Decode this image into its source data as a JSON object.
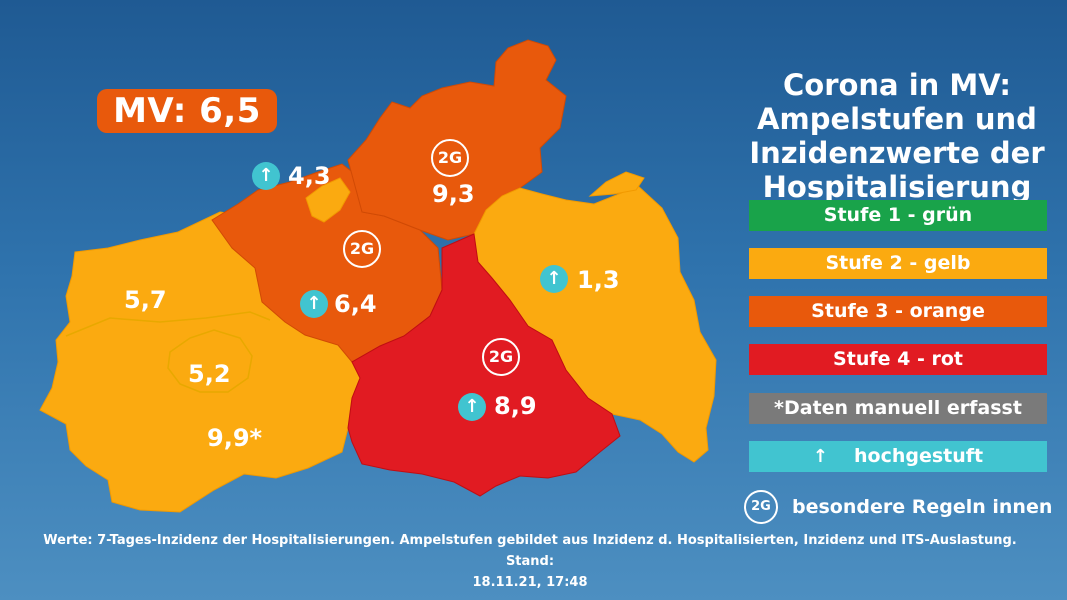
{
  "map": {
    "total_badge": "MV: 6,5",
    "title_lines": [
      "Corona in MV:",
      "Ampelstufen und",
      "Inzidenzwerte der",
      "Hospitalisierung"
    ],
    "districts": [
      {
        "id": "vorpommern-ruegen",
        "value": "9,3",
        "level": 3,
        "color": "#e8590c",
        "up": false,
        "two_g": true
      },
      {
        "id": "rostock",
        "value": "6,4",
        "level": 3,
        "color": "#e8590c",
        "up": true,
        "two_g": true
      },
      {
        "id": "rostock-stadt",
        "value": "4,3",
        "level": 2,
        "color": "#fbaa10",
        "up": true,
        "two_g": false
      },
      {
        "id": "vorpommern-greifswald",
        "value": "1,3",
        "level": 2,
        "color": "#fbaa10",
        "up": true,
        "two_g": false
      },
      {
        "id": "nordwestmecklenburg",
        "value": "5,7",
        "level": 2,
        "color": "#fbaa10",
        "up": false,
        "two_g": false
      },
      {
        "id": "schwerin",
        "value": "5,2",
        "level": 2,
        "color": "#fbaa10",
        "up": false,
        "two_g": false
      },
      {
        "id": "ludwigslust-parchim",
        "value": "9,9*",
        "level": 2,
        "color": "#fbaa10",
        "up": false,
        "two_g": false
      },
      {
        "id": "mecklenburgische-seenplatte",
        "value": "8,9",
        "level": 4,
        "color": "#e11b22",
        "up": true,
        "two_g": true
      }
    ],
    "two_g_label": "2G",
    "up_symbol": "up-arrow-icon"
  },
  "legend": {
    "items": [
      {
        "label": "Stufe 1 - grün",
        "color": "#19a34a"
      },
      {
        "label": "Stufe 2 - gelb",
        "color": "#fbaa10"
      },
      {
        "label": "Stufe 3 - orange",
        "color": "#e8590c"
      },
      {
        "label": "Stufe 4 - rot",
        "color": "#e11b22"
      },
      {
        "label": "*Daten manuell erfasst",
        "color": "#7a7a7a"
      },
      {
        "label": "hochgestuft",
        "color": "#41c4d0"
      }
    ],
    "rule_badge": "2G",
    "rule_label": "besondere Regeln innen"
  },
  "footnote": {
    "line1": "Werte: 7-Tages-Inzidenz der Hospitalisierungen. Ampelstufen gebildet aus Inzidenz d. Hospitalisierten, Inzidenz und ITS-Auslastung. Stand:",
    "line2": "18.11.21, 17:48"
  }
}
